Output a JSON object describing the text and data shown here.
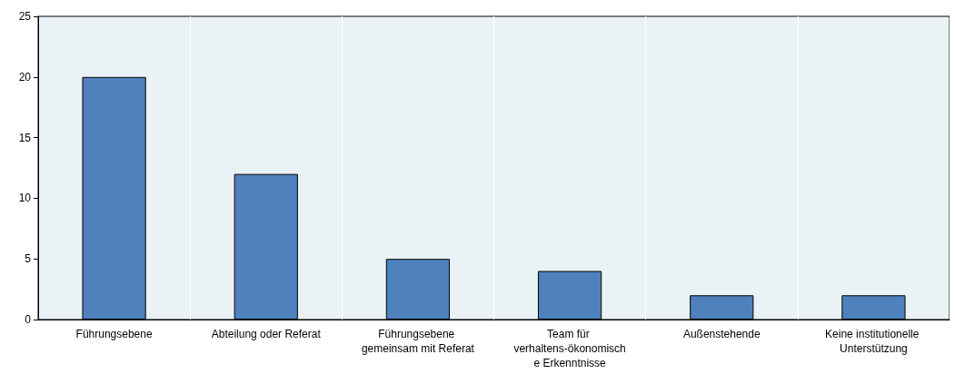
{
  "chart_data": {
    "type": "bar",
    "categories": [
      "Führungsebene",
      "Abteilung oder Referat",
      "Führungsebene gemeinsam mit Referat",
      "Team für verhaltens-ökonomische Erkenntnisse",
      "Außenstehende",
      "Keine institutionelle Unterstützung"
    ],
    "values": [
      20,
      12,
      5,
      4,
      2,
      2
    ],
    "color": "#4f81bd",
    "ylim": [
      0,
      25
    ],
    "yticks": [
      0,
      5,
      10,
      15,
      20,
      25
    ],
    "grid": "x"
  }
}
